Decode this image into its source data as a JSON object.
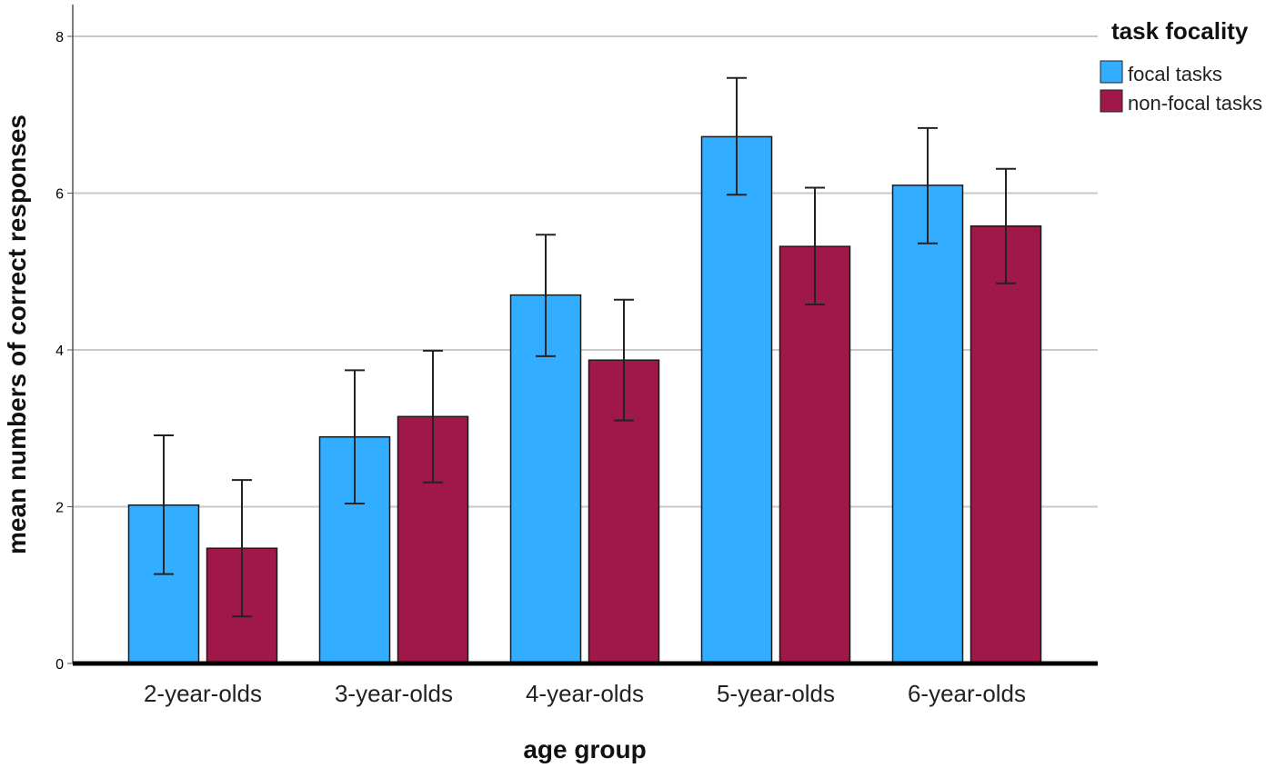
{
  "colors": {
    "focal": "#33adff",
    "nonfocal": "#a0174a",
    "grid": "#c8c8c8",
    "axis": "#000000",
    "error": "#222222"
  },
  "chart_data": {
    "type": "bar",
    "title": "",
    "xlabel": "age group",
    "ylabel": "mean numbers of correct responses",
    "ylim": [
      0,
      8.4
    ],
    "yticks": [
      0,
      2,
      4,
      6,
      8
    ],
    "grid": true,
    "legend_title": "task focality",
    "legend_position": "top-right",
    "categories": [
      "2-year-olds",
      "3-year-olds",
      "4-year-olds",
      "5-year-olds",
      "6-year-olds"
    ],
    "series": [
      {
        "name": "focal tasks",
        "color": "#33adff",
        "values": [
          2.02,
          2.89,
          4.7,
          6.72,
          6.1
        ],
        "error_low": [
          1.14,
          2.04,
          3.92,
          5.98,
          5.36
        ],
        "error_high": [
          2.91,
          3.74,
          5.47,
          7.47,
          6.83
        ]
      },
      {
        "name": "non-focal tasks",
        "color": "#a0174a",
        "values": [
          1.47,
          3.15,
          3.87,
          5.32,
          5.58
        ],
        "error_low": [
          0.6,
          2.31,
          3.1,
          4.58,
          4.85
        ],
        "error_high": [
          2.34,
          3.99,
          4.64,
          6.07,
          6.31
        ]
      }
    ]
  }
}
